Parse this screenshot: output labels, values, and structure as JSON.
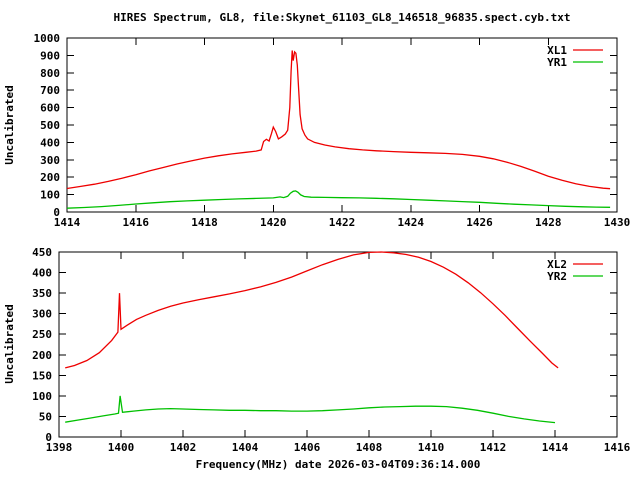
{
  "title": "HIRES Spectrum, GL8, file:Skynet_61103_GL8_146518_96835.spect.cyb.txt",
  "xlabel": "Frequency(MHz) date 2026-03-04T09:36:14.000",
  "colors": {
    "background": "#ffffff",
    "axis": "#000000",
    "text": "#000000",
    "series_red": "#ee0000",
    "series_green": "#00c000"
  },
  "chart_data": [
    {
      "type": "line",
      "name": "top-spectrum",
      "ylabel": "Uncalibrated",
      "xlim": [
        1414,
        1430
      ],
      "ylim": [
        0,
        1000
      ],
      "x_ticks": [
        1414,
        1416,
        1418,
        1420,
        1422,
        1424,
        1426,
        1428,
        1430
      ],
      "y_ticks": [
        0,
        100,
        200,
        300,
        400,
        500,
        600,
        700,
        800,
        900,
        1000
      ],
      "grid": false,
      "legend_position": "top-right",
      "legend": [
        {
          "label": "XL1",
          "color": "#ee0000"
        },
        {
          "label": "YR1",
          "color": "#00c000"
        }
      ],
      "series": [
        {
          "name": "XL1",
          "color": "#ee0000",
          "points": [
            [
              1414.0,
              135
            ],
            [
              1414.4,
              147
            ],
            [
              1414.8,
              160
            ],
            [
              1415.2,
              176
            ],
            [
              1415.6,
              194
            ],
            [
              1416.0,
              214
            ],
            [
              1416.4,
              236
            ],
            [
              1416.8,
              256
            ],
            [
              1417.2,
              276
            ],
            [
              1417.6,
              293
            ],
            [
              1418.0,
              310
            ],
            [
              1418.4,
              323
            ],
            [
              1418.8,
              334
            ],
            [
              1419.2,
              343
            ],
            [
              1419.5,
              350
            ],
            [
              1419.65,
              357
            ],
            [
              1419.72,
              405
            ],
            [
              1419.8,
              418
            ],
            [
              1419.88,
              408
            ],
            [
              1419.95,
              452
            ],
            [
              1420.0,
              488
            ],
            [
              1420.07,
              462
            ],
            [
              1420.15,
              420
            ],
            [
              1420.25,
              432
            ],
            [
              1420.35,
              448
            ],
            [
              1420.42,
              470
            ],
            [
              1420.48,
              600
            ],
            [
              1420.52,
              810
            ],
            [
              1420.55,
              928
            ],
            [
              1420.58,
              870
            ],
            [
              1420.62,
              920
            ],
            [
              1420.66,
              912
            ],
            [
              1420.7,
              845
            ],
            [
              1420.74,
              700
            ],
            [
              1420.78,
              560
            ],
            [
              1420.84,
              478
            ],
            [
              1420.92,
              442
            ],
            [
              1421.0,
              420
            ],
            [
              1421.2,
              400
            ],
            [
              1421.5,
              385
            ],
            [
              1421.8,
              374
            ],
            [
              1422.2,
              364
            ],
            [
              1422.6,
              357
            ],
            [
              1423.0,
              352
            ],
            [
              1423.5,
              347
            ],
            [
              1424.0,
              343
            ],
            [
              1424.5,
              340
            ],
            [
              1425.0,
              337
            ],
            [
              1425.5,
              331
            ],
            [
              1426.0,
              320
            ],
            [
              1426.4,
              306
            ],
            [
              1426.8,
              286
            ],
            [
              1427.2,
              262
            ],
            [
              1427.6,
              235
            ],
            [
              1428.0,
              206
            ],
            [
              1428.4,
              182
            ],
            [
              1428.8,
              162
            ],
            [
              1429.2,
              147
            ],
            [
              1429.6,
              137
            ],
            [
              1429.8,
              134
            ]
          ]
        },
        {
          "name": "YR1",
          "color": "#00c000",
          "points": [
            [
              1414.0,
              22
            ],
            [
              1414.5,
              26
            ],
            [
              1415.0,
              31
            ],
            [
              1415.5,
              38
            ],
            [
              1416.0,
              46
            ],
            [
              1416.5,
              53
            ],
            [
              1417.0,
              59
            ],
            [
              1417.5,
              64
            ],
            [
              1418.0,
              68
            ],
            [
              1418.5,
              72
            ],
            [
              1419.0,
              75
            ],
            [
              1419.5,
              78
            ],
            [
              1420.0,
              81
            ],
            [
              1420.2,
              87
            ],
            [
              1420.3,
              83
            ],
            [
              1420.42,
              90
            ],
            [
              1420.5,
              108
            ],
            [
              1420.58,
              119
            ],
            [
              1420.65,
              121
            ],
            [
              1420.72,
              113
            ],
            [
              1420.8,
              98
            ],
            [
              1420.9,
              89
            ],
            [
              1421.1,
              85
            ],
            [
              1421.5,
              84
            ],
            [
              1422.0,
              82
            ],
            [
              1422.5,
              81
            ],
            [
              1423.0,
              79
            ],
            [
              1423.5,
              76
            ],
            [
              1424.0,
              72
            ],
            [
              1424.5,
              68
            ],
            [
              1425.0,
              64
            ],
            [
              1425.5,
              60
            ],
            [
              1426.0,
              56
            ],
            [
              1426.5,
              50
            ],
            [
              1427.0,
              45
            ],
            [
              1427.5,
              41
            ],
            [
              1428.0,
              37
            ],
            [
              1428.5,
              33
            ],
            [
              1429.0,
              30
            ],
            [
              1429.4,
              28
            ],
            [
              1429.8,
              27
            ]
          ]
        }
      ]
    },
    {
      "type": "line",
      "name": "bottom-spectrum",
      "ylabel": "Uncalibrated",
      "xlim": [
        1398,
        1416
      ],
      "ylim": [
        0,
        450
      ],
      "x_ticks": [
        1398,
        1400,
        1402,
        1404,
        1406,
        1408,
        1410,
        1412,
        1414,
        1416
      ],
      "y_ticks": [
        0,
        50,
        100,
        150,
        200,
        250,
        300,
        350,
        400,
        450
      ],
      "grid": false,
      "legend_position": "top-right",
      "legend": [
        {
          "label": "XL2",
          "color": "#ee0000"
        },
        {
          "label": "YR2",
          "color": "#00c000"
        }
      ],
      "series": [
        {
          "name": "XL2",
          "color": "#ee0000",
          "points": [
            [
              1398.2,
              168
            ],
            [
              1398.5,
              174
            ],
            [
              1398.9,
              186
            ],
            [
              1399.3,
              205
            ],
            [
              1399.7,
              235
            ],
            [
              1399.9,
              255
            ],
            [
              1399.95,
              350
            ],
            [
              1400.0,
              262
            ],
            [
              1400.2,
              272
            ],
            [
              1400.5,
              286
            ],
            [
              1400.8,
              296
            ],
            [
              1401.2,
              308
            ],
            [
              1401.6,
              318
            ],
            [
              1402.0,
              326
            ],
            [
              1402.5,
              334
            ],
            [
              1403.0,
              341
            ],
            [
              1403.5,
              348
            ],
            [
              1404.0,
              356
            ],
            [
              1404.5,
              365
            ],
            [
              1405.0,
              376
            ],
            [
              1405.5,
              389
            ],
            [
              1406.0,
              404
            ],
            [
              1406.5,
              419
            ],
            [
              1407.0,
              432
            ],
            [
              1407.5,
              443
            ],
            [
              1408.0,
              449
            ],
            [
              1408.4,
              450
            ],
            [
              1408.8,
              448
            ],
            [
              1409.2,
              444
            ],
            [
              1409.6,
              437
            ],
            [
              1410.0,
              427
            ],
            [
              1410.4,
              413
            ],
            [
              1410.8,
              396
            ],
            [
              1411.2,
              375
            ],
            [
              1411.6,
              351
            ],
            [
              1412.0,
              324
            ],
            [
              1412.4,
              295
            ],
            [
              1412.8,
              264
            ],
            [
              1413.2,
              233
            ],
            [
              1413.6,
              203
            ],
            [
              1413.9,
              180
            ],
            [
              1414.1,
              168
            ]
          ]
        },
        {
          "name": "YR2",
          "color": "#00c000",
          "points": [
            [
              1398.2,
              36
            ],
            [
              1398.6,
              41
            ],
            [
              1399.0,
              46
            ],
            [
              1399.4,
              51
            ],
            [
              1399.8,
              56
            ],
            [
              1399.92,
              58
            ],
            [
              1399.97,
              100
            ],
            [
              1400.05,
              60
            ],
            [
              1400.4,
              63
            ],
            [
              1400.8,
              66
            ],
            [
              1401.2,
              68
            ],
            [
              1401.6,
              69
            ],
            [
              1402.0,
              68
            ],
            [
              1402.5,
              67
            ],
            [
              1403.0,
              66
            ],
            [
              1403.5,
              65
            ],
            [
              1404.0,
              65
            ],
            [
              1404.5,
              64
            ],
            [
              1405.0,
              64
            ],
            [
              1405.5,
              63
            ],
            [
              1406.0,
              63
            ],
            [
              1406.5,
              64
            ],
            [
              1407.0,
              66
            ],
            [
              1407.5,
              68
            ],
            [
              1408.0,
              71
            ],
            [
              1408.5,
              73
            ],
            [
              1409.0,
              74
            ],
            [
              1409.5,
              75
            ],
            [
              1410.0,
              75
            ],
            [
              1410.5,
              74
            ],
            [
              1411.0,
              70
            ],
            [
              1411.5,
              65
            ],
            [
              1412.0,
              58
            ],
            [
              1412.5,
              50
            ],
            [
              1413.0,
              44
            ],
            [
              1413.5,
              39
            ],
            [
              1414.0,
              35
            ]
          ]
        }
      ]
    }
  ]
}
